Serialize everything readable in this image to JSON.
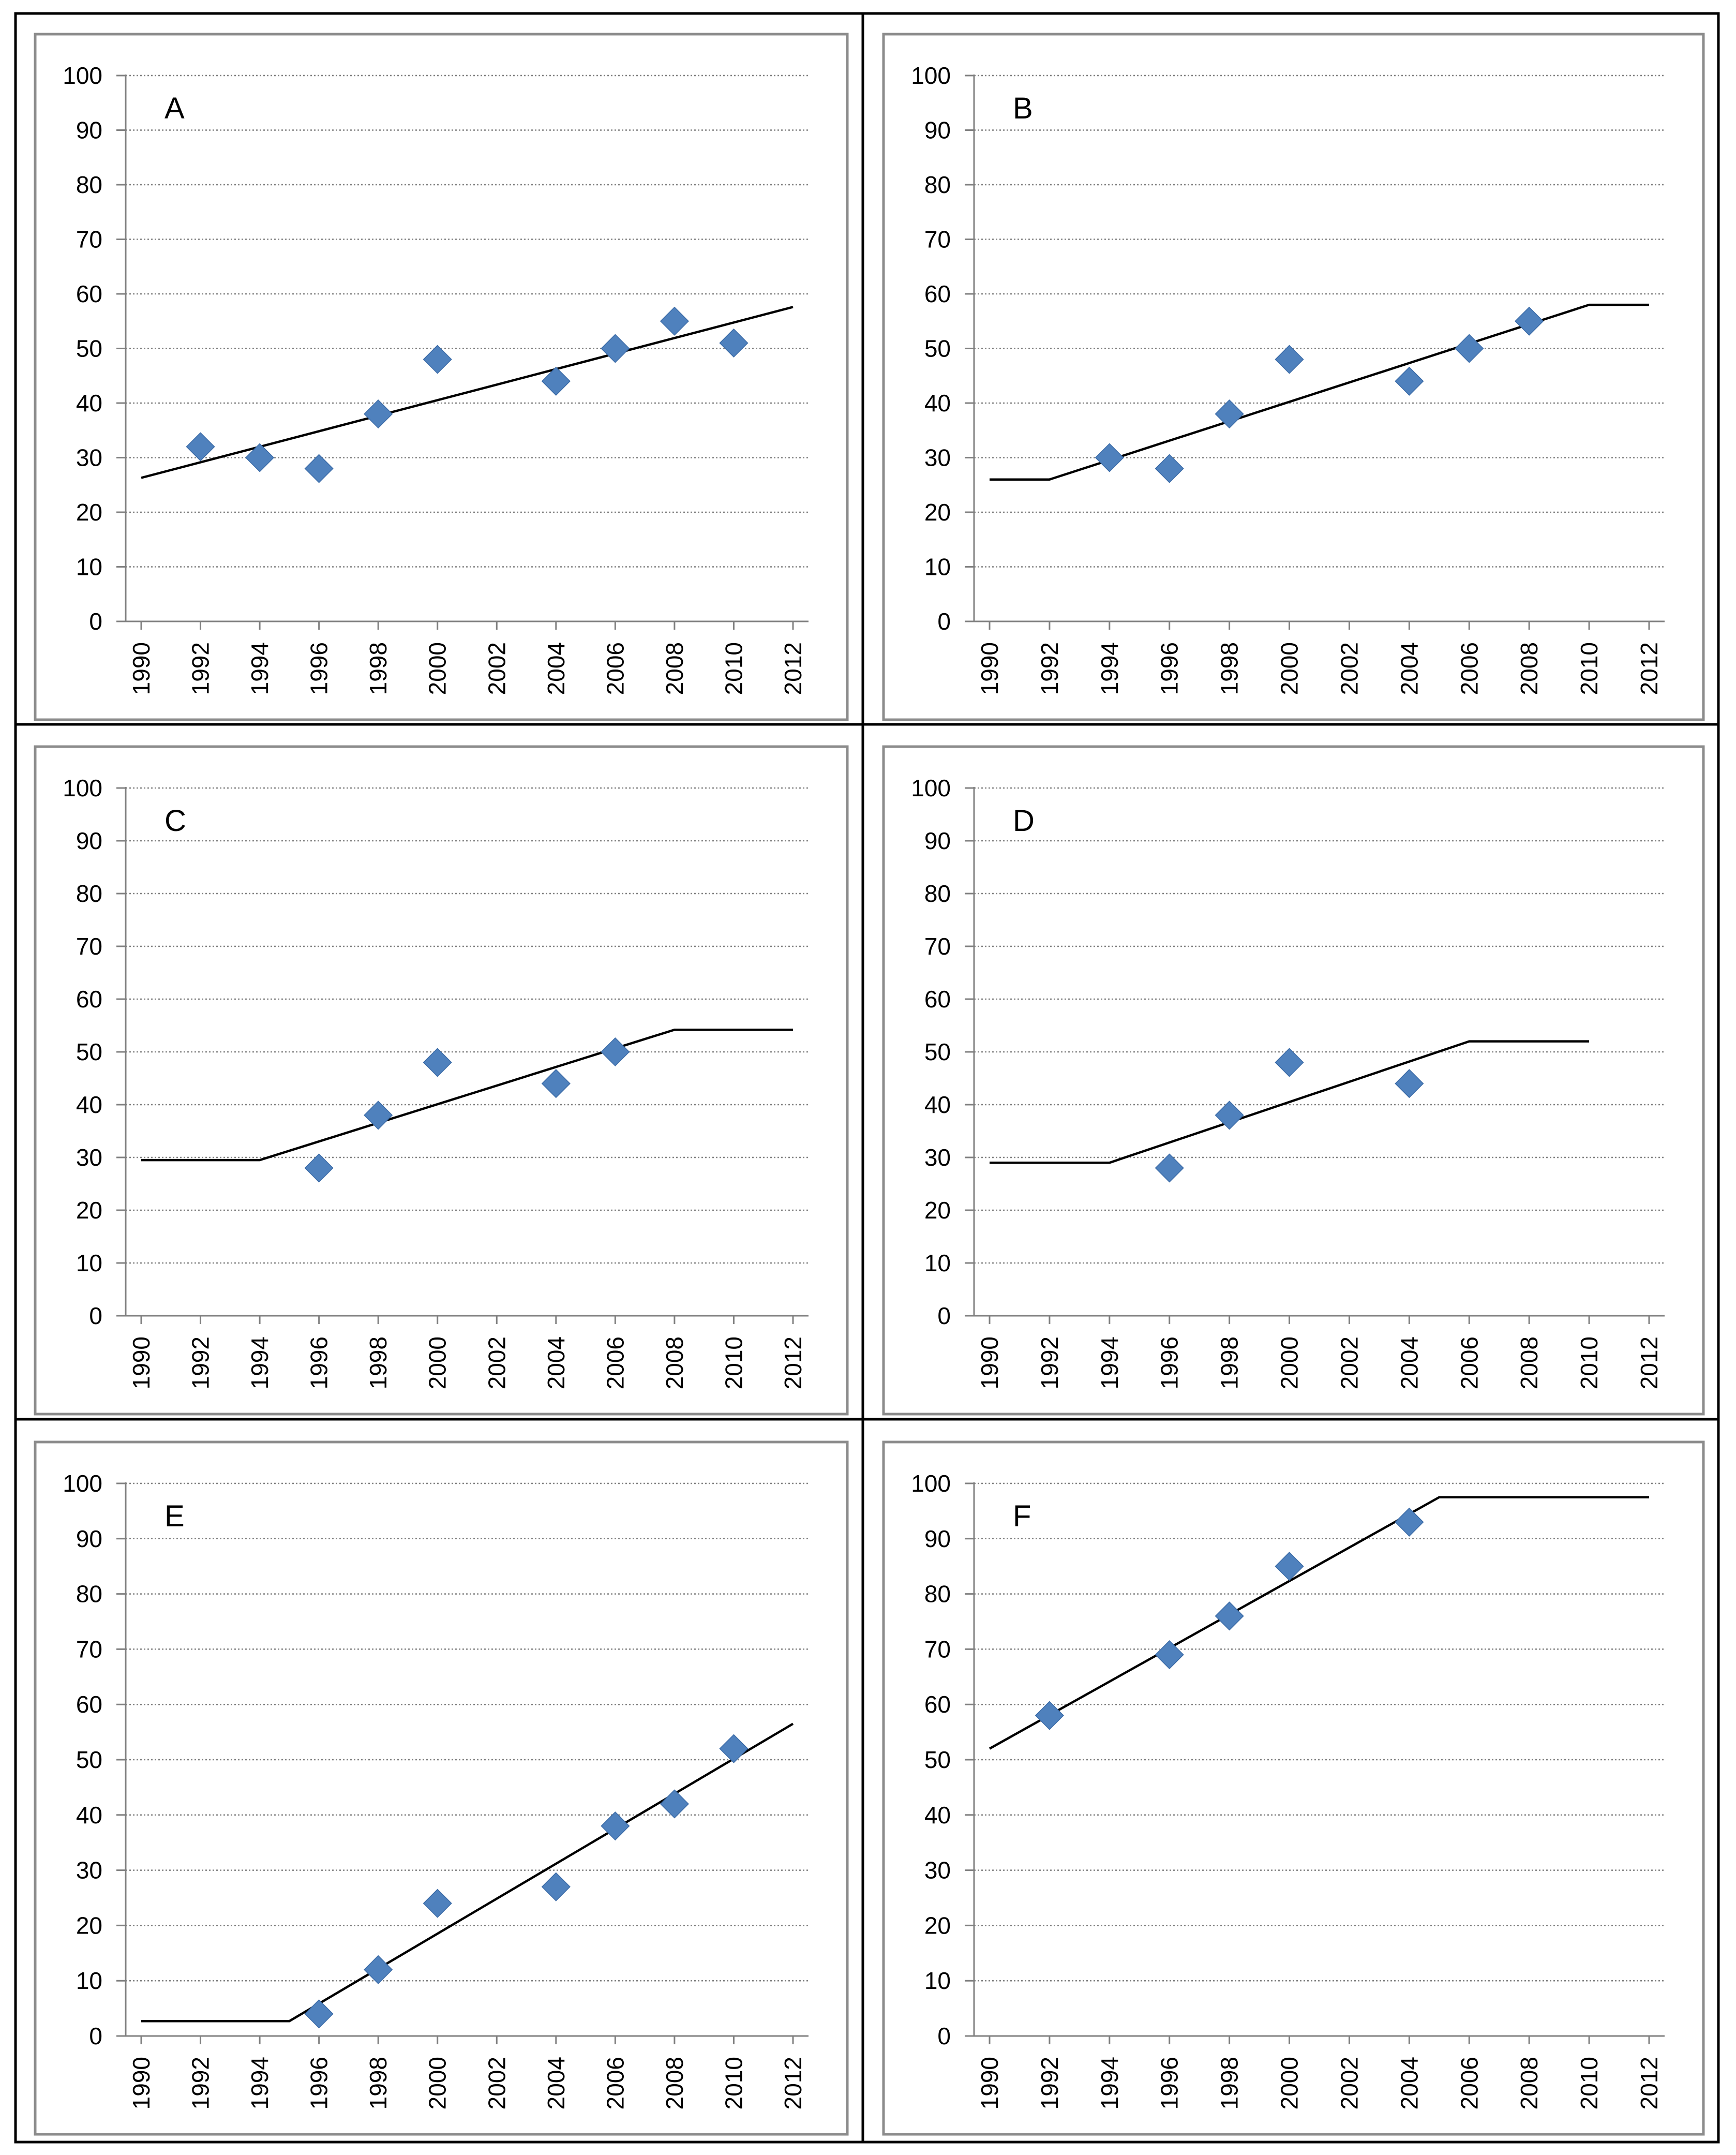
{
  "chart_data": [
    {
      "type": "scatter",
      "title": "A",
      "xlim": [
        1990,
        2012
      ],
      "ylim": [
        0,
        100
      ],
      "x_ticks": [
        "1990",
        "1992",
        "1994",
        "1996",
        "1998",
        "2000",
        "2002",
        "2004",
        "2006",
        "2008",
        "2010",
        "2012"
      ],
      "y_ticks": [
        "0",
        "10",
        "20",
        "30",
        "40",
        "50",
        "60",
        "70",
        "80",
        "90",
        "100"
      ],
      "grid": "horizontal dotted",
      "series": [
        {
          "type": "scatter",
          "marker": "diamond",
          "color": "#4f81bd",
          "x": [
            1992,
            1994,
            1996,
            1998,
            2000,
            2004,
            2006,
            2008,
            2010
          ],
          "y": [
            32,
            30,
            28,
            38,
            48,
            44,
            50,
            55,
            51
          ]
        },
        {
          "type": "line",
          "color": "#000000",
          "x": [
            1990,
            2012
          ],
          "y": [
            26.3,
            57.6
          ]
        }
      ]
    },
    {
      "type": "scatter",
      "title": "B",
      "xlim": [
        1990,
        2012
      ],
      "ylim": [
        0,
        100
      ],
      "x_ticks": [
        "1990",
        "1992",
        "1994",
        "1996",
        "1998",
        "2000",
        "2002",
        "2004",
        "2006",
        "2008",
        "2010",
        "2012"
      ],
      "y_ticks": [
        "0",
        "10",
        "20",
        "30",
        "40",
        "50",
        "60",
        "70",
        "80",
        "90",
        "100"
      ],
      "grid": "horizontal dotted",
      "series": [
        {
          "type": "scatter",
          "marker": "diamond",
          "color": "#4f81bd",
          "x": [
            1994,
            1996,
            1998,
            2000,
            2004,
            2006,
            2008
          ],
          "y": [
            30,
            28,
            38,
            48,
            44,
            50,
            55
          ]
        },
        {
          "type": "line",
          "color": "#000000",
          "x": [
            1990,
            1992,
            2010,
            2012
          ],
          "y": [
            26,
            26,
            58,
            58
          ]
        }
      ]
    },
    {
      "type": "scatter",
      "title": "C",
      "xlim": [
        1990,
        2012
      ],
      "ylim": [
        0,
        100
      ],
      "x_ticks": [
        "1990",
        "1992",
        "1994",
        "1996",
        "1998",
        "2000",
        "2002",
        "2004",
        "2006",
        "2008",
        "2010",
        "2012"
      ],
      "y_ticks": [
        "0",
        "10",
        "20",
        "30",
        "40",
        "50",
        "60",
        "70",
        "80",
        "90",
        "100"
      ],
      "grid": "horizontal dotted",
      "series": [
        {
          "type": "scatter",
          "marker": "diamond",
          "color": "#4f81bd",
          "x": [
            1996,
            1998,
            2000,
            2004,
            2006
          ],
          "y": [
            28,
            38,
            48,
            44,
            50
          ]
        },
        {
          "type": "line",
          "color": "#000000",
          "x": [
            1990,
            1994,
            2008,
            2012
          ],
          "y": [
            29.5,
            29.5,
            54.2,
            54.2
          ]
        }
      ]
    },
    {
      "type": "scatter",
      "title": "D",
      "xlim": [
        1990,
        2012
      ],
      "ylim": [
        0,
        100
      ],
      "x_ticks": [
        "1990",
        "1992",
        "1994",
        "1996",
        "1998",
        "2000",
        "2002",
        "2004",
        "2006",
        "2008",
        "2010",
        "2012"
      ],
      "y_ticks": [
        "0",
        "10",
        "20",
        "30",
        "40",
        "50",
        "60",
        "70",
        "80",
        "90",
        "100"
      ],
      "grid": "horizontal dotted",
      "series": [
        {
          "type": "scatter",
          "marker": "diamond",
          "color": "#4f81bd",
          "x": [
            1996,
            1998,
            2000,
            2004
          ],
          "y": [
            28,
            38,
            48,
            44
          ]
        },
        {
          "type": "line",
          "color": "#000000",
          "x": [
            1990,
            1994,
            2006,
            2010
          ],
          "y": [
            29,
            29,
            52,
            52
          ]
        }
      ]
    },
    {
      "type": "scatter",
      "title": "E",
      "xlim": [
        1990,
        2012
      ],
      "ylim": [
        0,
        100
      ],
      "x_ticks": [
        "1990",
        "1992",
        "1994",
        "1996",
        "1998",
        "2000",
        "2002",
        "2004",
        "2006",
        "2008",
        "2010",
        "2012"
      ],
      "y_ticks": [
        "0",
        "10",
        "20",
        "30",
        "40",
        "50",
        "60",
        "70",
        "80",
        "90",
        "100"
      ],
      "grid": "horizontal dotted",
      "series": [
        {
          "type": "scatter",
          "marker": "diamond",
          "color": "#4f81bd",
          "x": [
            1996,
            1998,
            2000,
            2004,
            2006,
            2008,
            2010
          ],
          "y": [
            4,
            12,
            24,
            27,
            38,
            42,
            52
          ]
        },
        {
          "type": "line",
          "color": "#000000",
          "x": [
            1990,
            1995,
            2012
          ],
          "y": [
            2.7,
            2.7,
            56.5
          ]
        }
      ]
    },
    {
      "type": "scatter",
      "title": "F",
      "xlim": [
        1990,
        2012
      ],
      "ylim": [
        0,
        100
      ],
      "x_ticks": [
        "1990",
        "1992",
        "1994",
        "1996",
        "1998",
        "2000",
        "2002",
        "2004",
        "2006",
        "2008",
        "2010",
        "2012"
      ],
      "y_ticks": [
        "0",
        "10",
        "20",
        "30",
        "40",
        "50",
        "60",
        "70",
        "80",
        "90",
        "100"
      ],
      "grid": "horizontal dotted",
      "series": [
        {
          "type": "scatter",
          "marker": "diamond",
          "color": "#4f81bd",
          "x": [
            1992,
            1996,
            1998,
            2000,
            2004
          ],
          "y": [
            58,
            69,
            76,
            85,
            93
          ]
        },
        {
          "type": "line",
          "color": "#000000",
          "x": [
            1990,
            2005,
            2012
          ],
          "y": [
            52,
            97.5,
            97.5
          ]
        }
      ]
    }
  ]
}
